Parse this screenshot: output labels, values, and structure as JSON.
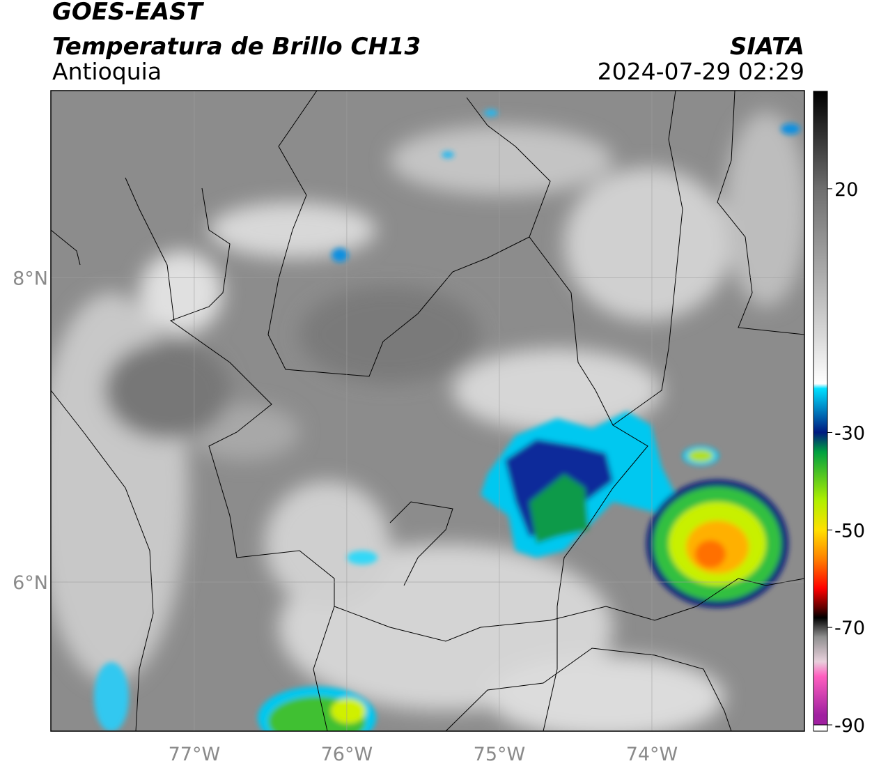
{
  "header": {
    "title": "GOES-EAST",
    "subtitle": "Temperatura de Brillo CH13",
    "region": "Antioquia",
    "source": "SIATA",
    "datetime": "2024-07-29 02:29"
  },
  "map": {
    "xlim": [
      -77.94,
      -73.0
    ],
    "ylim": [
      5.02,
      9.23
    ],
    "xticks": [
      {
        "value": -77,
        "label": "77°W"
      },
      {
        "value": -76,
        "label": "76°W"
      },
      {
        "value": -75,
        "label": "75°W"
      },
      {
        "value": -74,
        "label": "74°W"
      }
    ],
    "yticks": [
      {
        "value": 8,
        "label": "8°N"
      },
      {
        "value": 6,
        "label": "6°N"
      }
    ],
    "grid": true
  },
  "colorbar": {
    "lim": [
      -90,
      40
    ],
    "ticks": [
      20,
      -30,
      -50,
      -70,
      -90
    ],
    "colormap": [
      {
        "value": 40,
        "color": "#000000"
      },
      {
        "value": 20,
        "color": "#6e6e6e"
      },
      {
        "value": -10,
        "color": "#d8d8d8"
      },
      {
        "value": -20,
        "color": "#ffffff"
      },
      {
        "value": -21,
        "color": "#00e0ff"
      },
      {
        "value": -30,
        "color": "#001a80"
      },
      {
        "value": -34,
        "color": "#00a040"
      },
      {
        "value": -44,
        "color": "#b0f000"
      },
      {
        "value": -50,
        "color": "#ffe000"
      },
      {
        "value": -56,
        "color": "#ff8000"
      },
      {
        "value": -62,
        "color": "#ff0000"
      },
      {
        "value": -66,
        "color": "#600000"
      },
      {
        "value": -68,
        "color": "#000000"
      },
      {
        "value": -72,
        "color": "#909090"
      },
      {
        "value": -77,
        "color": "#e8d0dc"
      },
      {
        "value": -80,
        "color": "#ff60c0"
      },
      {
        "value": -88,
        "color": "#a020a0"
      }
    ]
  }
}
